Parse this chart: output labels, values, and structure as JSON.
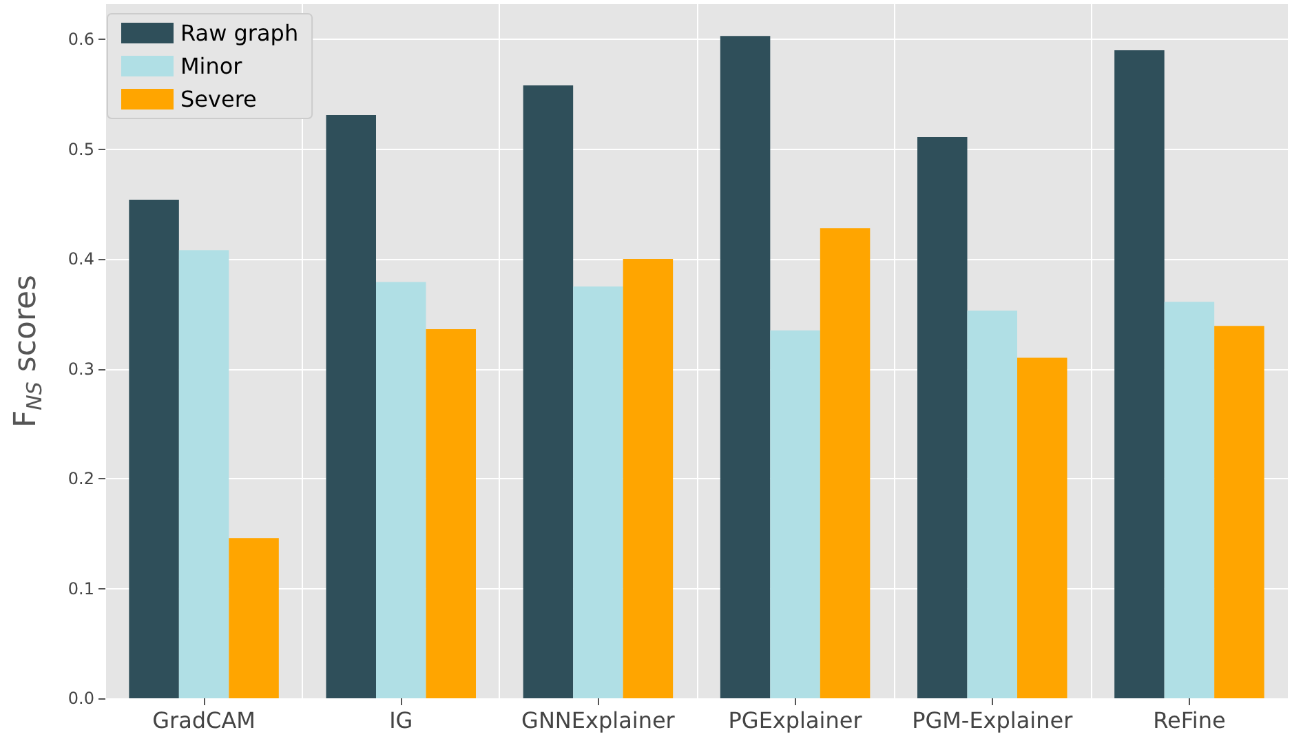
{
  "chart_data": {
    "type": "bar",
    "ylabel": "F$_{NS}$ scores",
    "categories": [
      "GradCAM",
      "IG",
      "GNNExplainer",
      "PGExplainer",
      "PGM-Explainer",
      "ReFine"
    ],
    "series": [
      {
        "name": "Raw graph",
        "color": "#2f4f5a",
        "values": [
          0.454,
          0.531,
          0.558,
          0.603,
          0.511,
          0.59
        ]
      },
      {
        "name": "Minor",
        "color": "#b0dfe5",
        "values": [
          0.408,
          0.379,
          0.375,
          0.335,
          0.353,
          0.361
        ]
      },
      {
        "name": "Severe",
        "color": "#ffa500",
        "values": [
          0.146,
          0.336,
          0.4,
          0.428,
          0.31,
          0.339
        ]
      }
    ],
    "ylim": [
      0,
      0.632
    ],
    "yticks": [
      {
        "value": 0,
        "label": "0.0"
      },
      0.1,
      0.2,
      0.3,
      0.4,
      0.5,
      0.6
    ],
    "grid": true,
    "legend": "top left"
  }
}
